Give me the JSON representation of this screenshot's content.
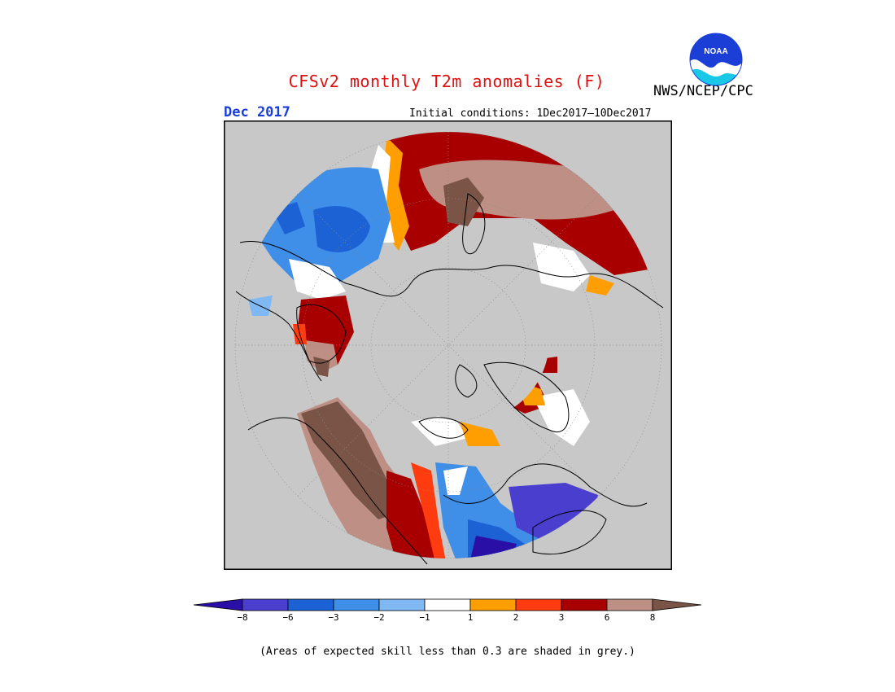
{
  "header": {
    "title": "CFSv2 monthly T2m anomalies (F)",
    "month": "Dec 2017",
    "initial_conditions": "Initial conditions: 1Dec2017–10Dec2017",
    "agency": "NWS/NCEP/CPC",
    "logo_text": "NOAA"
  },
  "colors": {
    "grey_low_skill": "#c8c8c8",
    "bins": [
      "#2a0fa6",
      "#4a3ecf",
      "#1d62d4",
      "#3f8ee8",
      "#7fb8f2",
      "#ffffff",
      "#ff9e00",
      "#ff3c10",
      "#a80000",
      "#bd8f85",
      "#7a5446"
    ]
  },
  "colorbar": {
    "ticks": [
      "−8",
      "−6",
      "−3",
      "−2",
      "−1",
      "1",
      "2",
      "3",
      "6",
      "8"
    ]
  },
  "footnote": "(Areas of expected skill less than 0.3 are shaded in grey.)"
}
